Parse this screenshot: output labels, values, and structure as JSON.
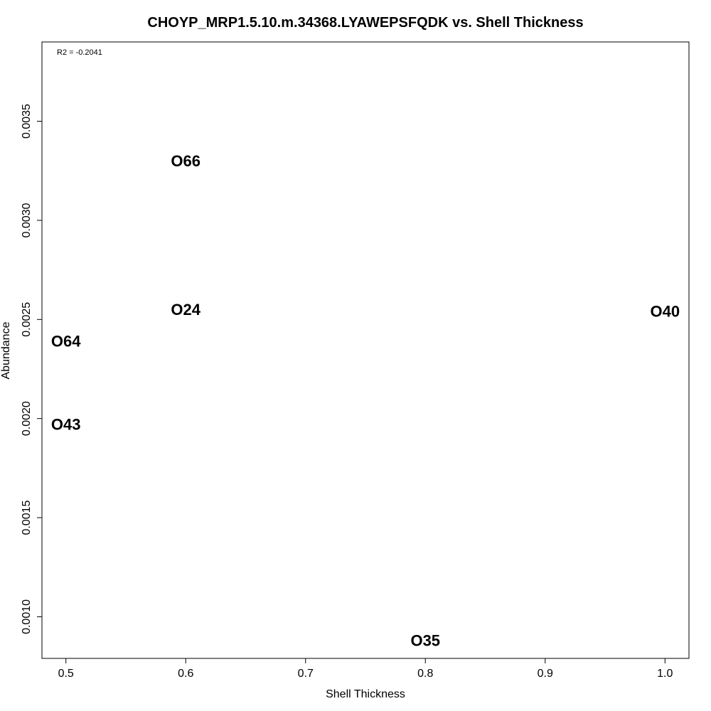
{
  "chart_data": {
    "type": "scatter",
    "title": "CHOYP_MRP1.5.10.m.34368.LYAWEPSFQDK vs. Shell Thickness",
    "xlabel": "Shell Thickness",
    "ylabel": "Abundance",
    "annotation": "R2 = -0.2041",
    "xlim": [
      0.48,
      1.02
    ],
    "ylim": [
      0.00079,
      0.0039
    ],
    "x_ticks": [
      0.5,
      0.6,
      0.7,
      0.8,
      0.9,
      1.0
    ],
    "x_tick_labels": [
      "0.5",
      "0.6",
      "0.7",
      "0.8",
      "0.9",
      "1.0"
    ],
    "y_ticks": [
      0.001,
      0.0015,
      0.002,
      0.0025,
      0.003,
      0.0035
    ],
    "y_tick_labels": [
      "0.0010",
      "0.0015",
      "0.0020",
      "0.0025",
      "0.0030",
      "0.0035"
    ],
    "grid": false,
    "points": [
      {
        "label": "O66",
        "x": 0.6,
        "y": 0.0033
      },
      {
        "label": "O24",
        "x": 0.6,
        "y": 0.00255
      },
      {
        "label": "O64",
        "x": 0.5,
        "y": 0.00239
      },
      {
        "label": "O43",
        "x": 0.5,
        "y": 0.00197
      },
      {
        "label": "O40",
        "x": 1.0,
        "y": 0.00254
      },
      {
        "label": "O35",
        "x": 0.8,
        "y": 0.00088
      }
    ]
  }
}
